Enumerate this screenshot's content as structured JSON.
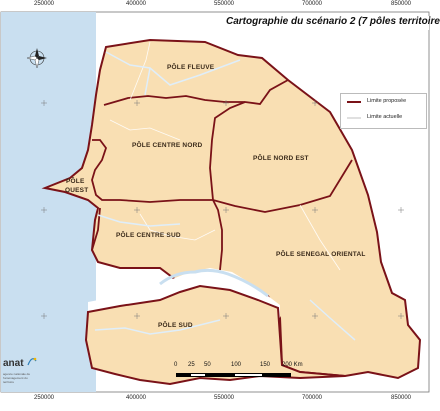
{
  "map": {
    "title": "Cartographie du scénario 2 (7 pôles territoire",
    "x_ticks_top": [
      "250000",
      "400000",
      "550000",
      "700000",
      "850000"
    ],
    "x_ticks_bottom": [
      "250000",
      "400000",
      "550000",
      "700000",
      "850000"
    ],
    "colors": {
      "sea": "#c9dff0",
      "land_fill": "#f9dfb3",
      "border_proposed": "#7a1218",
      "border_current": "#ffffff",
      "river": "#e8f3fb",
      "outside_land": "#ffffff"
    },
    "regions": [
      {
        "id": "fleuve",
        "label": "PÔLE FLEUVE"
      },
      {
        "id": "centre_nord",
        "label": "PÔLE CENTRE NORD"
      },
      {
        "id": "nord_est",
        "label": "PÔLE NORD EST"
      },
      {
        "id": "ouest_1",
        "label": "PÔLE"
      },
      {
        "id": "ouest_2",
        "label": "OUEST"
      },
      {
        "id": "centre_sud",
        "label": "PÔLE CENTRE SUD"
      },
      {
        "id": "senegal_oriental",
        "label": "PÔLE SENEGAL ORIENTAL"
      },
      {
        "id": "sud",
        "label": "PÔLE SUD"
      }
    ],
    "legend": {
      "proposed": "Limite proposée",
      "current": "Limite actuelle"
    },
    "scale": {
      "ticks": [
        "0",
        "25",
        "50",
        "100",
        "150",
        "200 Km"
      ]
    },
    "logo": {
      "name": "anat",
      "subtitle": "agence nationale de l'aménagement du territoire"
    },
    "compass_icon": "north-arrow-rose-icon"
  }
}
